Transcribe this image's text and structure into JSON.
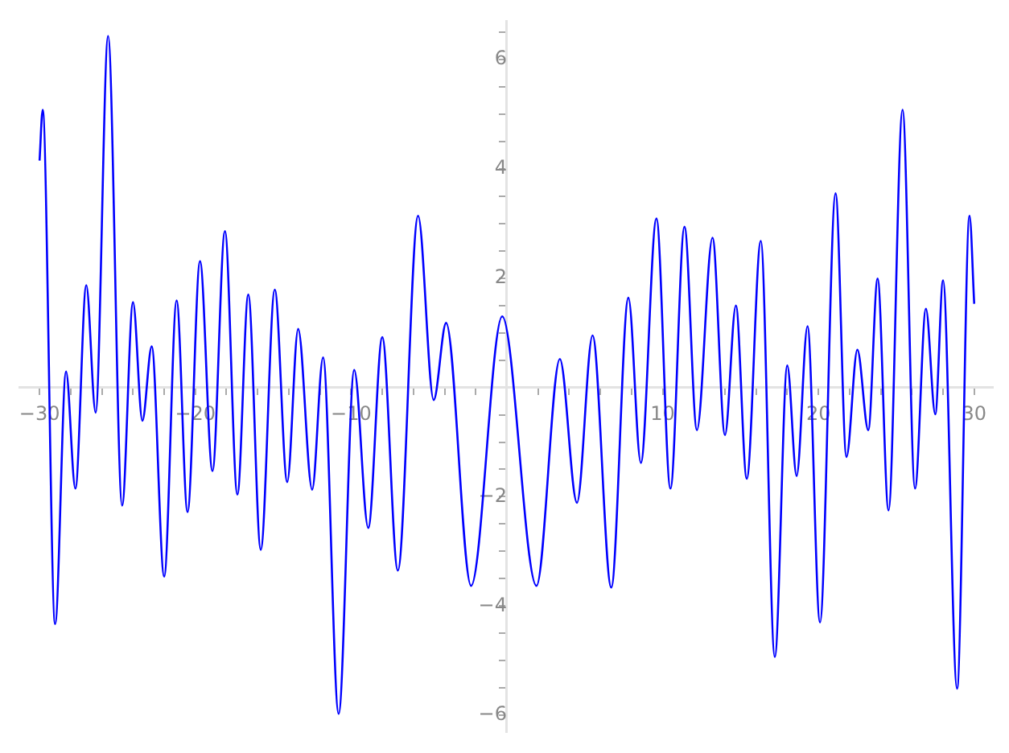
{
  "chart_data": {
    "type": "line",
    "x": [
      -30,
      -29.8,
      -29.0,
      -28.3,
      -27.7,
      -27.0,
      -26.4,
      -25.6,
      -24.7,
      -24.0,
      -23.4,
      -22.8,
      -22.0,
      -21.2,
      -20.5,
      -19.7,
      -18.9,
      -18.1,
      -17.3,
      -16.6,
      -15.8,
      -14.9,
      -14.1,
      -13.4,
      -12.5,
      -11.8,
      -10.8,
      -9.8,
      -8.9,
      -8.0,
      -7.0,
      -5.7,
      -4.7,
      -3.9,
      -2.3,
      -0.3,
      1.9,
      3.4,
      4.5,
      5.5,
      6.7,
      7.8,
      8.6,
      9.6,
      10.5,
      11.4,
      12.2,
      13.2,
      14.0,
      14.7,
      15.4,
      16.3,
      17.2,
      18.0,
      18.6,
      19.3,
      20.1,
      21.1,
      21.8,
      22.5,
      23.2,
      23.8,
      24.5,
      25.4,
      26.2,
      26.9,
      27.5,
      28.0,
      28.9,
      29.7,
      30
    ],
    "series": [
      {
        "color": "#0000ff",
        "values": [
          4.15,
          5.08,
          -4.33,
          0.29,
          -1.85,
          1.87,
          -0.46,
          6.43,
          -2.16,
          1.56,
          -0.61,
          0.75,
          -3.46,
          1.59,
          -2.28,
          2.31,
          -1.53,
          2.86,
          -1.96,
          1.7,
          -2.97,
          1.79,
          -1.73,
          1.07,
          -1.87,
          0.55,
          -5.97,
          0.32,
          -2.57,
          0.92,
          -3.35,
          3.14,
          -0.23,
          1.18,
          -3.63,
          1.3,
          -3.63,
          0.52,
          -2.11,
          0.95,
          -3.66,
          1.64,
          -1.38,
          3.09,
          -1.85,
          2.94,
          -0.78,
          2.74,
          -0.87,
          1.5,
          -1.67,
          2.68,
          -4.93,
          0.4,
          -1.62,
          1.12,
          -4.3,
          3.55,
          -1.27,
          0.69,
          -0.78,
          1.99,
          -2.25,
          5.08,
          -1.85,
          1.44,
          -0.49,
          1.96,
          -5.51,
          3.14,
          1.53
        ]
      }
    ],
    "xlim": [
      -31.3,
      31.2
    ],
    "ylim": [
      -6.3,
      6.7
    ],
    "xticks": [
      {
        "value": -30,
        "label": "−30"
      },
      {
        "value": -28,
        "label": null
      },
      {
        "value": -26,
        "label": null
      },
      {
        "value": -24,
        "label": null
      },
      {
        "value": -22,
        "label": null
      },
      {
        "value": -20,
        "label": "−20"
      },
      {
        "value": -18,
        "label": null
      },
      {
        "value": -16,
        "label": null
      },
      {
        "value": -14,
        "label": null
      },
      {
        "value": -12,
        "label": null
      },
      {
        "value": -10,
        "label": "−10"
      },
      {
        "value": -8,
        "label": null
      },
      {
        "value": -6,
        "label": null
      },
      {
        "value": -4,
        "label": null
      },
      {
        "value": -2,
        "label": null
      },
      {
        "value": 2,
        "label": null
      },
      {
        "value": 4,
        "label": null
      },
      {
        "value": 6,
        "label": null
      },
      {
        "value": 8,
        "label": null
      },
      10,
      {
        "value": 12,
        "label": null
      },
      {
        "value": 14,
        "label": null
      },
      {
        "value": 16,
        "label": null
      },
      {
        "value": 18,
        "label": null
      },
      20,
      {
        "value": 22,
        "label": null
      },
      {
        "value": 24,
        "label": null
      },
      {
        "value": 26,
        "label": null
      },
      {
        "value": 28,
        "label": null
      },
      30
    ],
    "yticks": [
      {
        "value": -6,
        "label": "−6"
      },
      {
        "value": -5.5,
        "label": null
      },
      {
        "value": -5,
        "label": null
      },
      {
        "value": -4.5,
        "label": null
      },
      {
        "value": -4,
        "label": "−4"
      },
      {
        "value": -3.5,
        "label": null
      },
      {
        "value": -3,
        "label": null
      },
      {
        "value": -2.5,
        "label": null
      },
      {
        "value": -2,
        "label": "−2"
      },
      {
        "value": -1.5,
        "label": null
      },
      {
        "value": -1,
        "label": null
      },
      {
        "value": -0.5,
        "label": null
      },
      {
        "value": 0.5,
        "label": null
      },
      {
        "value": 1,
        "label": null
      },
      {
        "value": 1.5,
        "label": null
      },
      2,
      {
        "value": 2.5,
        "label": null
      },
      {
        "value": 3,
        "label": null
      },
      {
        "value": 3.5,
        "label": null
      },
      4,
      {
        "value": 4.5,
        "label": null
      },
      {
        "value": 5,
        "label": null
      },
      {
        "value": 5.5,
        "label": null
      },
      6,
      {
        "value": 6.5,
        "label": null
      }
    ],
    "grid": false,
    "legend": false
  }
}
